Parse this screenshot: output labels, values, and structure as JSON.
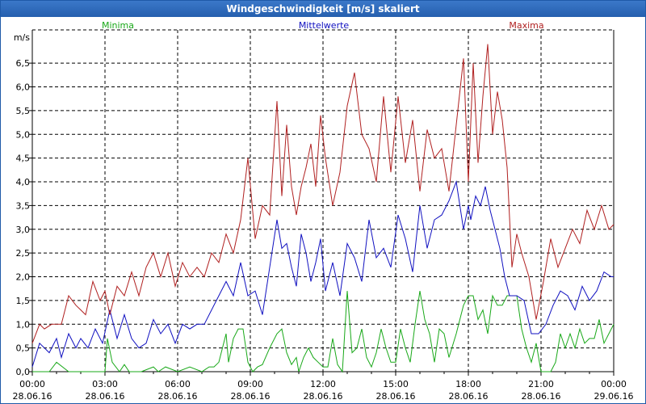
{
  "window": {
    "title": "Windgeschwindigkeit [m/s] skaliert"
  },
  "chart_data": {
    "type": "line",
    "title": "Windgeschwindigkeit [m/s] skaliert",
    "ylabel": "m/s",
    "ylim": [
      0,
      7.2
    ],
    "xlim_hours": [
      0,
      24
    ],
    "grid": true,
    "y_ticks": [
      "0,0",
      "0,5",
      "1,0",
      "1,5",
      "2,0",
      "2,5",
      "3,0",
      "3,5",
      "4,0",
      "4,5",
      "5,0",
      "5,5",
      "6,0",
      "6,5"
    ],
    "x_ticks": [
      {
        "time": "00:00",
        "date": "28.06.16"
      },
      {
        "time": "03:00",
        "date": "28.06.16"
      },
      {
        "time": "06:00",
        "date": "28.06.16"
      },
      {
        "time": "09:00",
        "date": "28.06.16"
      },
      {
        "time": "12:00",
        "date": "28.06.16"
      },
      {
        "time": "15:00",
        "date": "28.06.16"
      },
      {
        "time": "18:00",
        "date": "28.06.16"
      },
      {
        "time": "21:00",
        "date": "28.06.16"
      },
      {
        "time": "00:00",
        "date": "29.06.16"
      }
    ],
    "legend_position": "top",
    "series": [
      {
        "name": "Minima",
        "color": "#18a818",
        "x": [
          0,
          0.3,
          0.7,
          1.0,
          1.5,
          2.0,
          2.8,
          3.0,
          3.1,
          3.3,
          3.6,
          3.8,
          4.0,
          4.5,
          5.0,
          5.2,
          5.5,
          6.0,
          6.5,
          7.0,
          7.3,
          7.5,
          7.7,
          7.9,
          8.0,
          8.1,
          8.3,
          8.5,
          8.7,
          8.9,
          9.1,
          9.3,
          9.5,
          9.8,
          10.1,
          10.3,
          10.5,
          10.7,
          10.9,
          11.0,
          11.2,
          11.4,
          11.6,
          11.8,
          12.0,
          12.2,
          12.4,
          12.6,
          12.8,
          13.0,
          13.2,
          13.4,
          13.6,
          13.8,
          14.0,
          14.2,
          14.4,
          14.6,
          14.8,
          15.0,
          15.2,
          15.4,
          15.6,
          15.8,
          16.0,
          16.2,
          16.4,
          16.6,
          16.8,
          17.0,
          17.2,
          17.5,
          17.8,
          18.0,
          18.2,
          18.4,
          18.6,
          18.8,
          19.0,
          19.2,
          19.4,
          19.6,
          19.8,
          20.0,
          20.2,
          20.4,
          20.6,
          20.8,
          21.0,
          21.2,
          21.4,
          21.6,
          21.8,
          22.0,
          22.2,
          22.4,
          22.6,
          22.8,
          23.0,
          23.2,
          23.4,
          23.6,
          23.8,
          24.0
        ],
        "values": [
          0.0,
          0.0,
          0.0,
          0.2,
          0.0,
          0.0,
          0.0,
          0.0,
          0.7,
          0.2,
          0.0,
          0.15,
          0.0,
          0.0,
          0.1,
          0.0,
          0.1,
          0.0,
          0.1,
          0.0,
          0.1,
          0.1,
          0.2,
          0.6,
          0.8,
          0.2,
          0.7,
          0.9,
          0.9,
          0.2,
          0.0,
          0.1,
          0.15,
          0.5,
          0.8,
          0.9,
          0.4,
          0.15,
          0.3,
          0.0,
          0.3,
          0.5,
          0.3,
          0.2,
          0.1,
          0.1,
          0.7,
          0.15,
          0.0,
          1.7,
          0.4,
          0.5,
          0.9,
          0.3,
          0.1,
          0.4,
          0.9,
          0.5,
          0.2,
          0.2,
          0.9,
          0.5,
          0.2,
          1.0,
          1.7,
          1.1,
          0.8,
          0.2,
          0.9,
          0.8,
          0.3,
          0.8,
          1.4,
          1.6,
          1.6,
          1.1,
          1.3,
          0.8,
          1.6,
          1.4,
          1.4,
          1.6,
          1.6,
          1.6,
          0.9,
          0.5,
          0.2,
          0.6,
          0.0,
          0.0,
          0.0,
          0.2,
          0.8,
          0.5,
          0.8,
          0.5,
          0.9,
          0.6,
          0.7,
          0.7,
          1.1,
          0.6,
          0.8,
          1.0
        ]
      },
      {
        "name": "Mittelwerte",
        "color": "#1010c0",
        "x": [
          0,
          0.3,
          0.7,
          1.0,
          1.2,
          1.5,
          1.8,
          2.0,
          2.3,
          2.6,
          2.9,
          3.2,
          3.5,
          3.8,
          4.1,
          4.4,
          4.7,
          5.0,
          5.3,
          5.6,
          5.9,
          6.2,
          6.5,
          6.8,
          7.1,
          7.4,
          7.7,
          8.0,
          8.3,
          8.6,
          8.9,
          9.2,
          9.5,
          9.8,
          10.1,
          10.3,
          10.5,
          10.7,
          10.9,
          11.1,
          11.3,
          11.5,
          11.7,
          11.9,
          12.1,
          12.4,
          12.7,
          13.0,
          13.3,
          13.6,
          13.9,
          14.2,
          14.5,
          14.8,
          15.1,
          15.4,
          15.7,
          16.0,
          16.3,
          16.6,
          16.9,
          17.2,
          17.5,
          17.8,
          18.0,
          18.1,
          18.3,
          18.5,
          18.7,
          18.9,
          19.1,
          19.3,
          19.5,
          19.7,
          20.0,
          20.3,
          20.6,
          20.9,
          21.2,
          21.5,
          21.8,
          22.1,
          22.4,
          22.7,
          23.0,
          23.3,
          23.6,
          23.9,
          24.0
        ],
        "values": [
          0.1,
          0.6,
          0.4,
          0.7,
          0.3,
          0.8,
          0.5,
          0.7,
          0.5,
          0.9,
          0.6,
          1.3,
          0.7,
          1.2,
          0.7,
          0.5,
          0.6,
          1.1,
          0.8,
          1.0,
          0.6,
          1.0,
          0.9,
          1.0,
          1.0,
          1.3,
          1.6,
          1.9,
          1.6,
          2.3,
          1.6,
          1.7,
          1.2,
          2.2,
          3.2,
          2.6,
          2.7,
          2.2,
          1.8,
          2.9,
          2.5,
          1.9,
          2.3,
          2.8,
          1.7,
          2.3,
          1.6,
          2.7,
          2.4,
          1.9,
          3.2,
          2.4,
          2.6,
          2.2,
          3.3,
          2.8,
          2.1,
          3.5,
          2.6,
          3.2,
          3.3,
          3.6,
          4.0,
          3.0,
          3.5,
          3.2,
          3.7,
          3.5,
          3.9,
          3.4,
          3.0,
          2.6,
          2.0,
          1.6,
          1.6,
          1.5,
          0.8,
          0.8,
          1.0,
          1.4,
          1.7,
          1.6,
          1.3,
          1.8,
          1.5,
          1.7,
          2.1,
          2.0,
          2.0
        ],
        "note": "values continue below"
      },
      {
        "name": "Maxima",
        "color": "#b02020",
        "x": [
          0,
          0.3,
          0.5,
          0.8,
          1.0,
          1.2,
          1.5,
          1.8,
          2.0,
          2.2,
          2.5,
          2.8,
          3.0,
          3.2,
          3.5,
          3.8,
          4.1,
          4.4,
          4.7,
          5.0,
          5.3,
          5.6,
          5.9,
          6.2,
          6.5,
          6.8,
          7.1,
          7.4,
          7.7,
          8.0,
          8.3,
          8.6,
          8.9,
          9.2,
          9.5,
          9.8,
          10.1,
          10.3,
          10.5,
          10.7,
          10.9,
          11.1,
          11.3,
          11.5,
          11.7,
          11.9,
          12.1,
          12.4,
          12.7,
          13.0,
          13.3,
          13.6,
          13.9,
          14.2,
          14.5,
          14.8,
          15.1,
          15.4,
          15.7,
          16.0,
          16.3,
          16.6,
          16.9,
          17.2,
          17.5,
          17.8,
          18.0,
          18.2,
          18.4,
          18.6,
          18.8,
          19.0,
          19.2,
          19.4,
          19.6,
          19.8,
          20.0,
          20.2,
          20.5,
          20.8,
          21.1,
          21.4,
          21.7,
          22.0,
          22.3,
          22.6,
          22.9,
          23.2,
          23.5,
          23.8,
          24.0
        ],
        "values": [
          0.6,
          1.0,
          0.9,
          1.0,
          1.0,
          1.0,
          1.6,
          1.4,
          1.3,
          1.2,
          1.9,
          1.5,
          1.7,
          1.2,
          1.8,
          1.6,
          2.1,
          1.6,
          2.2,
          2.5,
          2.0,
          2.5,
          1.8,
          2.3,
          2.0,
          2.2,
          2.0,
          2.5,
          2.3,
          2.9,
          2.5,
          3.2,
          4.5,
          2.8,
          3.5,
          3.3,
          5.7,
          3.7,
          5.2,
          3.9,
          3.3,
          3.9,
          4.3,
          4.8,
          3.9,
          5.4,
          4.5,
          3.5,
          4.2,
          5.6,
          6.3,
          5.0,
          4.7,
          4.0,
          5.8,
          4.2,
          5.8,
          4.4,
          5.3,
          3.8,
          5.1,
          4.5,
          4.7,
          3.8,
          5.2,
          6.6,
          4.0,
          6.5,
          4.4,
          5.8,
          6.9,
          5.0,
          5.9,
          5.3,
          4.3,
          2.2,
          2.9,
          2.5,
          2.0,
          1.1,
          1.9,
          2.8,
          2.2,
          2.6,
          3.0,
          2.7,
          3.4,
          3.0,
          3.5,
          3.0,
          3.1
        ]
      }
    ]
  }
}
